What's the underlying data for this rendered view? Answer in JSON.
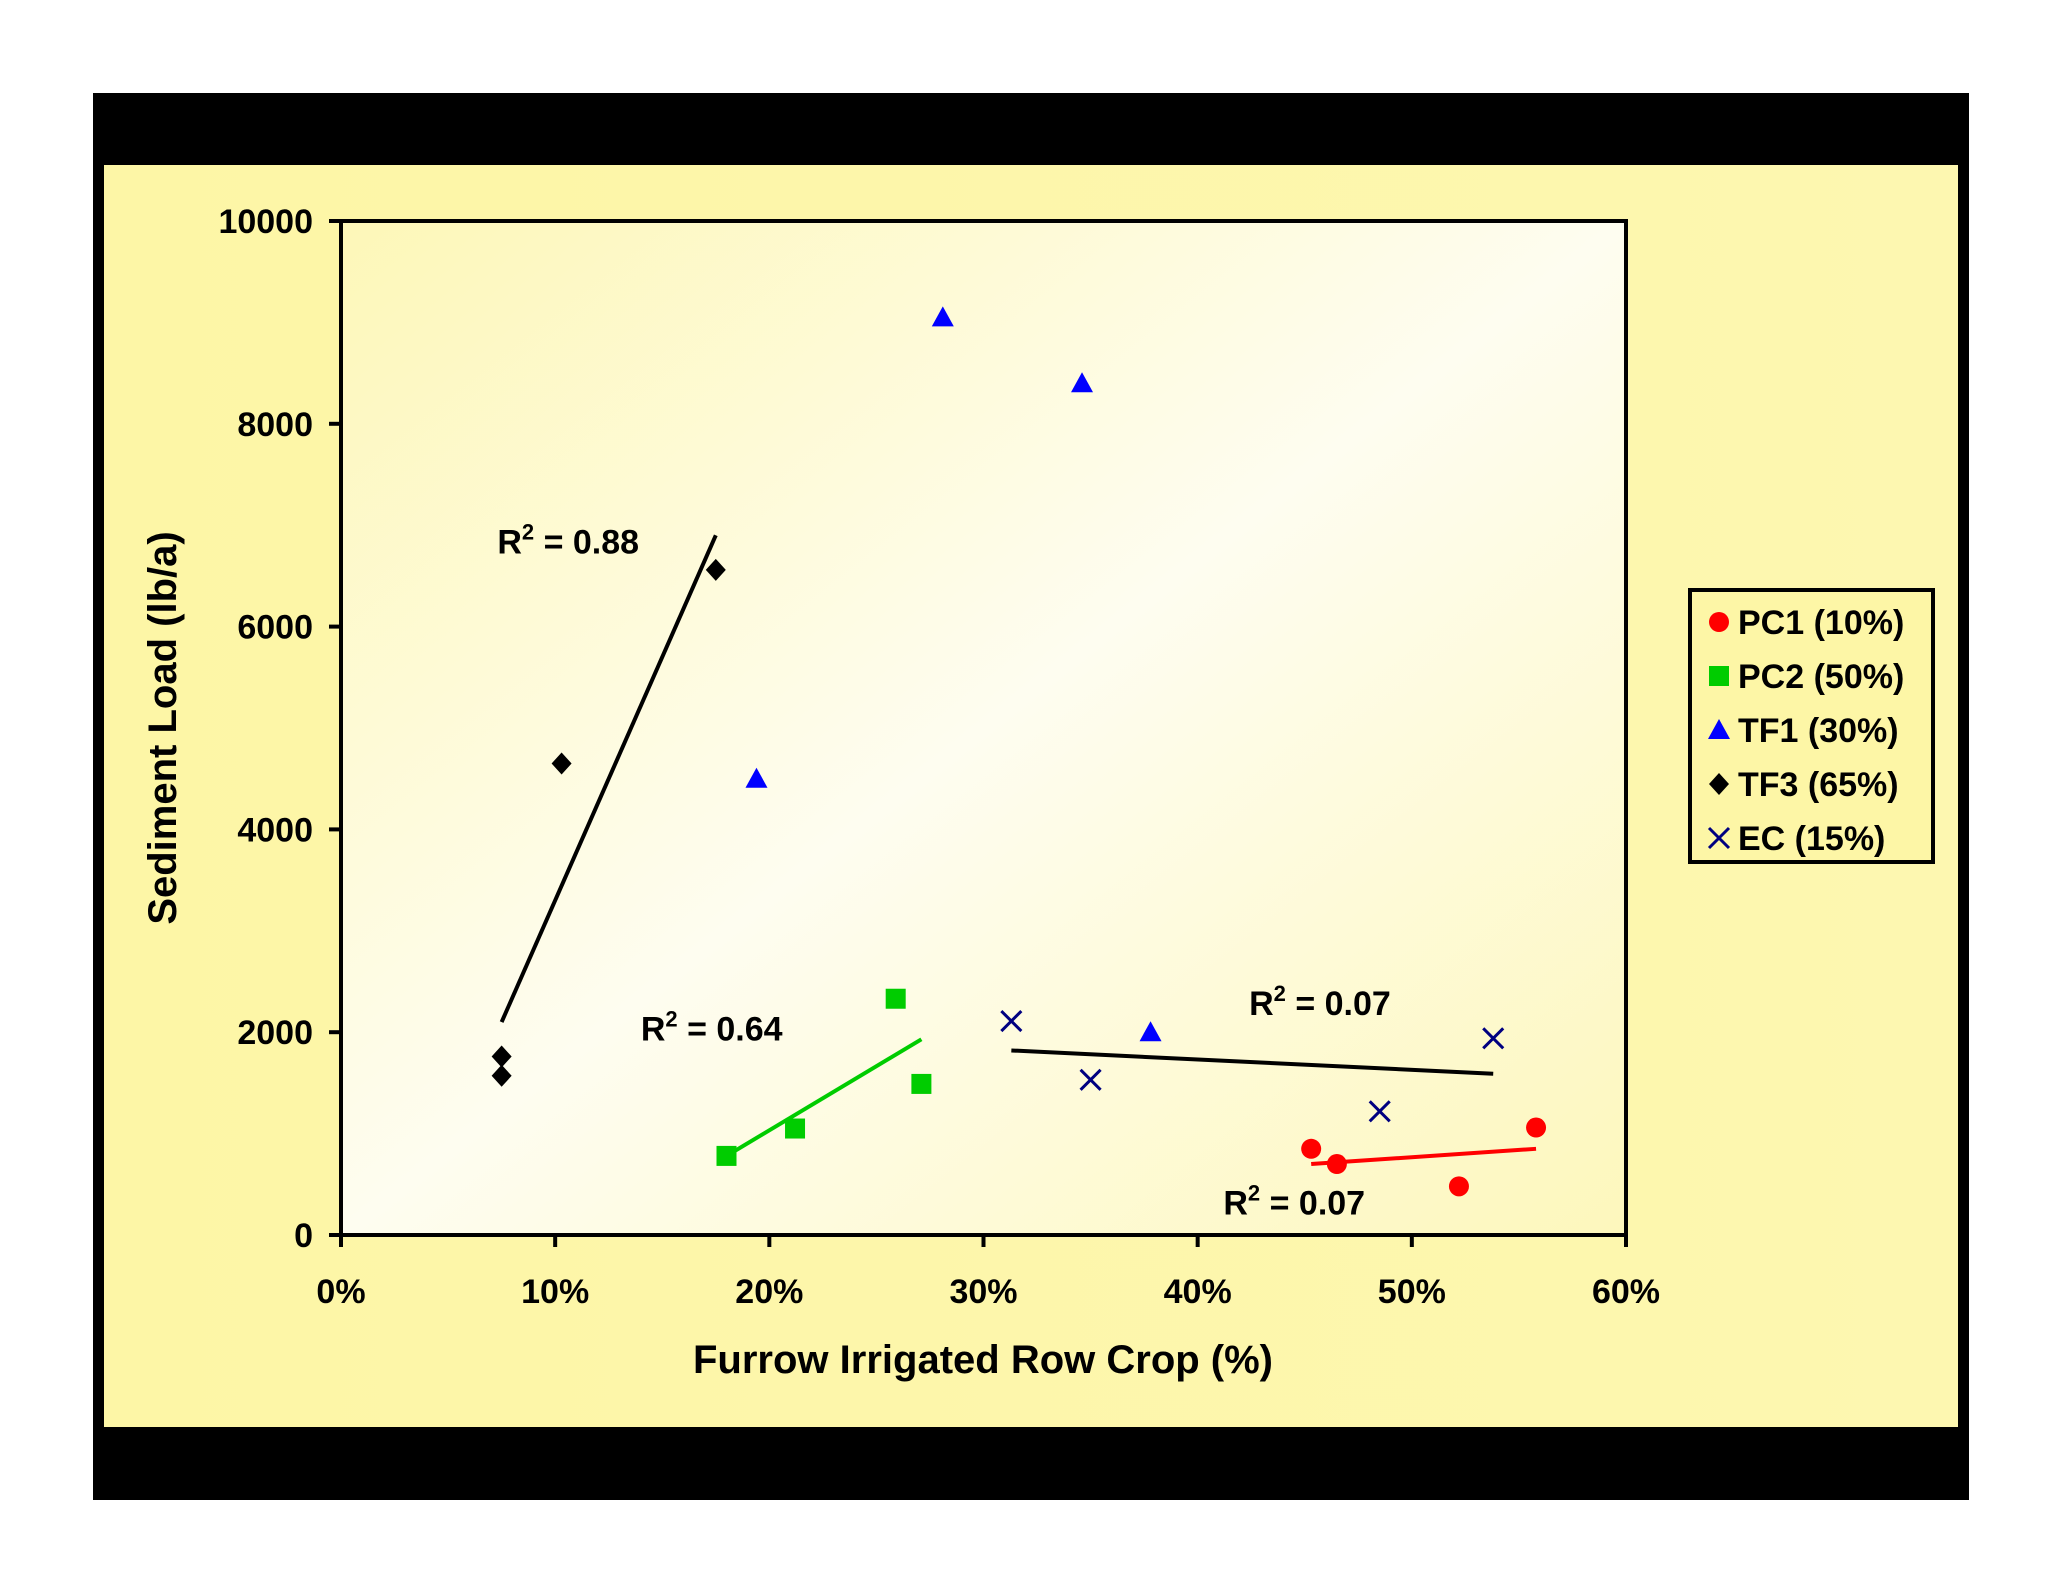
{
  "chart_data": {
    "type": "scatter",
    "title": "",
    "xlabel": "Furrow Irrigated Row Crop (%)",
    "ylabel": "Sediment Load (lb/a)",
    "xlim": [
      0,
      60
    ],
    "ylim": [
      0,
      10000
    ],
    "x_ticks": [
      0,
      10,
      20,
      30,
      40,
      50,
      60
    ],
    "x_tick_labels": [
      "0%",
      "10%",
      "20%",
      "30%",
      "40%",
      "50%",
      "60%"
    ],
    "y_ticks": [
      0,
      2000,
      4000,
      6000,
      8000,
      10000
    ],
    "y_tick_labels": [
      "0",
      "2000",
      "4000",
      "6000",
      "8000",
      "10000"
    ],
    "grid": false,
    "legend_position": "right",
    "series": [
      {
        "name": "PC1 (10%)",
        "marker": "circle",
        "color": "#ff0000",
        "points": [
          [
            45.3,
            850
          ],
          [
            46.5,
            700
          ],
          [
            52.2,
            480
          ],
          [
            55.8,
            1060
          ]
        ],
        "trendline": {
          "x": [
            45.3,
            55.8
          ],
          "y": [
            700,
            850
          ],
          "color": "#ff0000",
          "r2_label": "R",
          "r2_text": " = 0.07",
          "label_anchor": [
            41.2,
            200
          ]
        }
      },
      {
        "name": "PC2 (50%)",
        "marker": "square",
        "color": "#00cc00",
        "points": [
          [
            18.0,
            780
          ],
          [
            21.2,
            1050
          ],
          [
            25.9,
            2330
          ],
          [
            27.1,
            1490
          ]
        ],
        "trendline": {
          "x": [
            18.0,
            27.1
          ],
          "y": [
            780,
            1930
          ],
          "color": "#00cc00",
          "r2_label": "R",
          "r2_text": " = 0.64",
          "label_anchor": [
            14.0,
            1920
          ]
        }
      },
      {
        "name": "TF1 (30%)",
        "marker": "triangle",
        "color": "#0000ff",
        "points": [
          [
            19.4,
            4500
          ],
          [
            28.1,
            9050
          ],
          [
            34.6,
            8400
          ],
          [
            37.8,
            2000
          ]
        ]
      },
      {
        "name": "TF3 (65%)",
        "marker": "diamond",
        "color": "#000000",
        "points": [
          [
            7.5,
            1760
          ],
          [
            7.5,
            1570
          ],
          [
            10.3,
            4650
          ],
          [
            17.5,
            6560
          ]
        ],
        "trendline": {
          "x": [
            7.5,
            17.5
          ],
          "y": [
            2100,
            6900
          ],
          "color": "#000000",
          "r2_label": "R",
          "r2_text": " = 0.88",
          "label_anchor": [
            7.3,
            6720
          ]
        }
      },
      {
        "name": "EC (15%)",
        "marker": "x",
        "color": "#000080",
        "points": [
          [
            31.3,
            2110
          ],
          [
            35.0,
            1530
          ],
          [
            48.5,
            1220
          ],
          [
            53.8,
            1940
          ]
        ],
        "trendline": {
          "x": [
            31.3,
            53.8
          ],
          "y": [
            1820,
            1590
          ],
          "color": "#000000",
          "r2_label": "R",
          "r2_text": " = 0.07",
          "label_anchor": [
            42.4,
            2170
          ]
        }
      }
    ],
    "r2_superscript": "2"
  }
}
